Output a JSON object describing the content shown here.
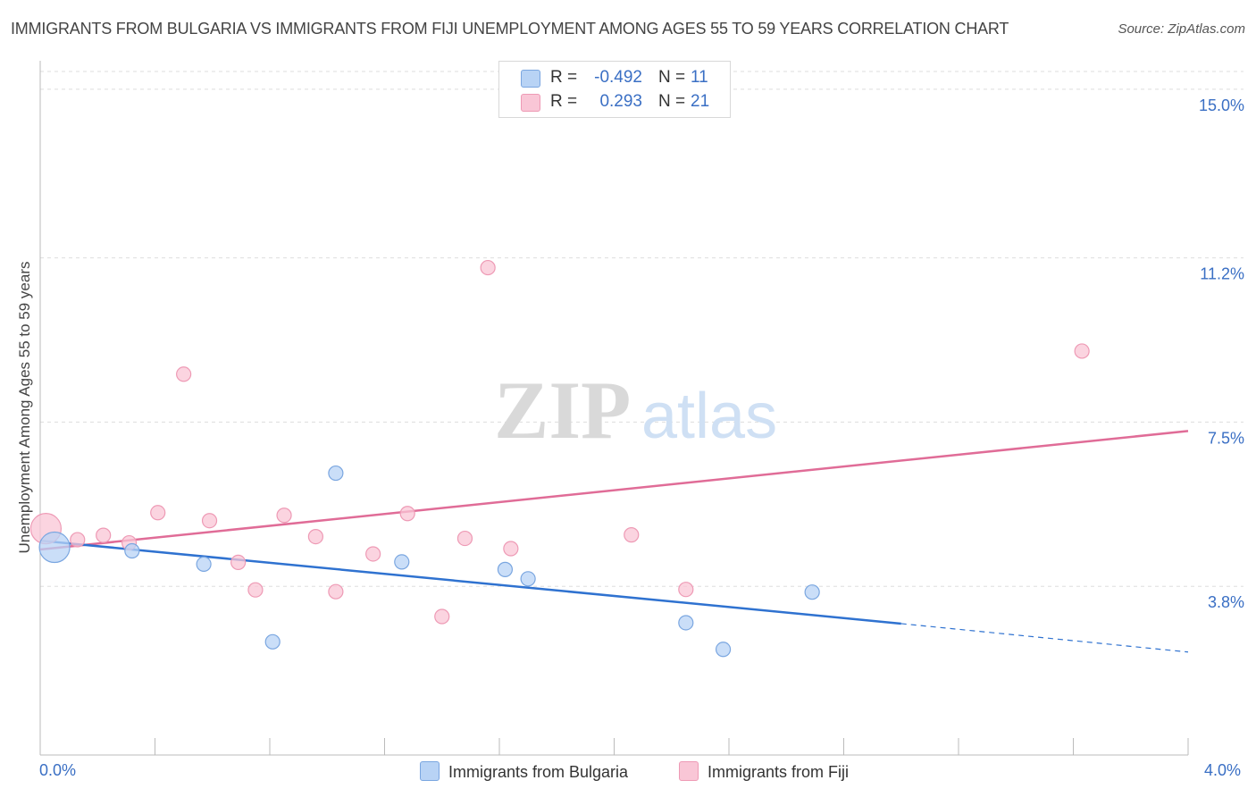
{
  "header": {
    "title": "IMMIGRANTS FROM BULGARIA VS IMMIGRANTS FROM FIJI UNEMPLOYMENT AMONG AGES 55 TO 59 YEARS CORRELATION CHART",
    "source": "Source: ZipAtlas.com"
  },
  "legend_stats": {
    "bulgaria": {
      "r_label": "R =",
      "r_value": "-0.492",
      "n_label": "N =",
      "n_value": "11"
    },
    "fiji": {
      "r_label": "R =",
      "r_value": "0.293",
      "n_label": "N =",
      "n_value": "21"
    }
  },
  "watermark": {
    "zip": "ZIP",
    "atlas": "atlas"
  },
  "colors": {
    "bulgaria_fill": "#b8d3f5",
    "bulgaria_stroke": "#7aa6e0",
    "bulgaria_line": "#2f72d0",
    "fiji_fill": "#f9c6d6",
    "fiji_stroke": "#ee9ab5",
    "fiji_line": "#e06c97",
    "axis_label": "#3a6fc4",
    "grid": "#dddddd"
  },
  "chart_data": {
    "type": "scatter",
    "title": "IMMIGRANTS FROM BULGARIA VS IMMIGRANTS FROM FIJI UNEMPLOYMENT AMONG AGES 55 TO 59 YEARS CORRELATION CHART",
    "xlabel": "",
    "ylabel": "Unemployment Among Ages 55 to 59 years",
    "xlim": [
      0,
      4.0
    ],
    "ylim": [
      0,
      15.4
    ],
    "x_tick_labels": [
      "0.0%",
      "4.0%"
    ],
    "y_ticks": [
      3.8,
      7.5,
      11.2,
      15.0
    ],
    "y_tick_labels": [
      "3.8%",
      "7.5%",
      "11.2%",
      "15.0%"
    ],
    "grid": true,
    "series": [
      {
        "name": "Immigrants from Bulgaria",
        "points": [
          {
            "x": 0.05,
            "y": 4.68,
            "size": "large"
          },
          {
            "x": 0.32,
            "y": 4.6
          },
          {
            "x": 0.57,
            "y": 4.3
          },
          {
            "x": 0.81,
            "y": 2.55
          },
          {
            "x": 1.03,
            "y": 6.35
          },
          {
            "x": 1.26,
            "y": 4.35
          },
          {
            "x": 1.62,
            "y": 4.18
          },
          {
            "x": 1.7,
            "y": 3.97
          },
          {
            "x": 2.25,
            "y": 2.98
          },
          {
            "x": 2.38,
            "y": 2.38
          },
          {
            "x": 2.69,
            "y": 3.67
          }
        ],
        "trend": {
          "x0": 0.0,
          "y0": 4.83,
          "x1": 3.0,
          "y1": 2.96,
          "dash_to_x": 4.0,
          "dash_to_y": 2.32
        }
      },
      {
        "name": "Immigrants from Fiji",
        "points": [
          {
            "x": 0.02,
            "y": 5.1,
            "size": "large"
          },
          {
            "x": 0.13,
            "y": 4.85
          },
          {
            "x": 0.22,
            "y": 4.95
          },
          {
            "x": 0.31,
            "y": 4.78
          },
          {
            "x": 0.41,
            "y": 5.46
          },
          {
            "x": 0.5,
            "y": 8.58
          },
          {
            "x": 0.59,
            "y": 5.28
          },
          {
            "x": 0.69,
            "y": 4.34
          },
          {
            "x": 0.75,
            "y": 3.72
          },
          {
            "x": 0.85,
            "y": 5.4
          },
          {
            "x": 0.96,
            "y": 4.92
          },
          {
            "x": 1.03,
            "y": 3.68
          },
          {
            "x": 1.16,
            "y": 4.53
          },
          {
            "x": 1.28,
            "y": 5.44
          },
          {
            "x": 1.4,
            "y": 3.12
          },
          {
            "x": 1.48,
            "y": 4.88
          },
          {
            "x": 1.56,
            "y": 10.98
          },
          {
            "x": 1.64,
            "y": 4.65
          },
          {
            "x": 2.06,
            "y": 4.96
          },
          {
            "x": 2.25,
            "y": 3.73
          },
          {
            "x": 3.63,
            "y": 9.1
          }
        ],
        "trend": {
          "x0": 0.0,
          "y0": 4.63,
          "x1": 4.0,
          "y1": 7.3
        }
      }
    ]
  }
}
